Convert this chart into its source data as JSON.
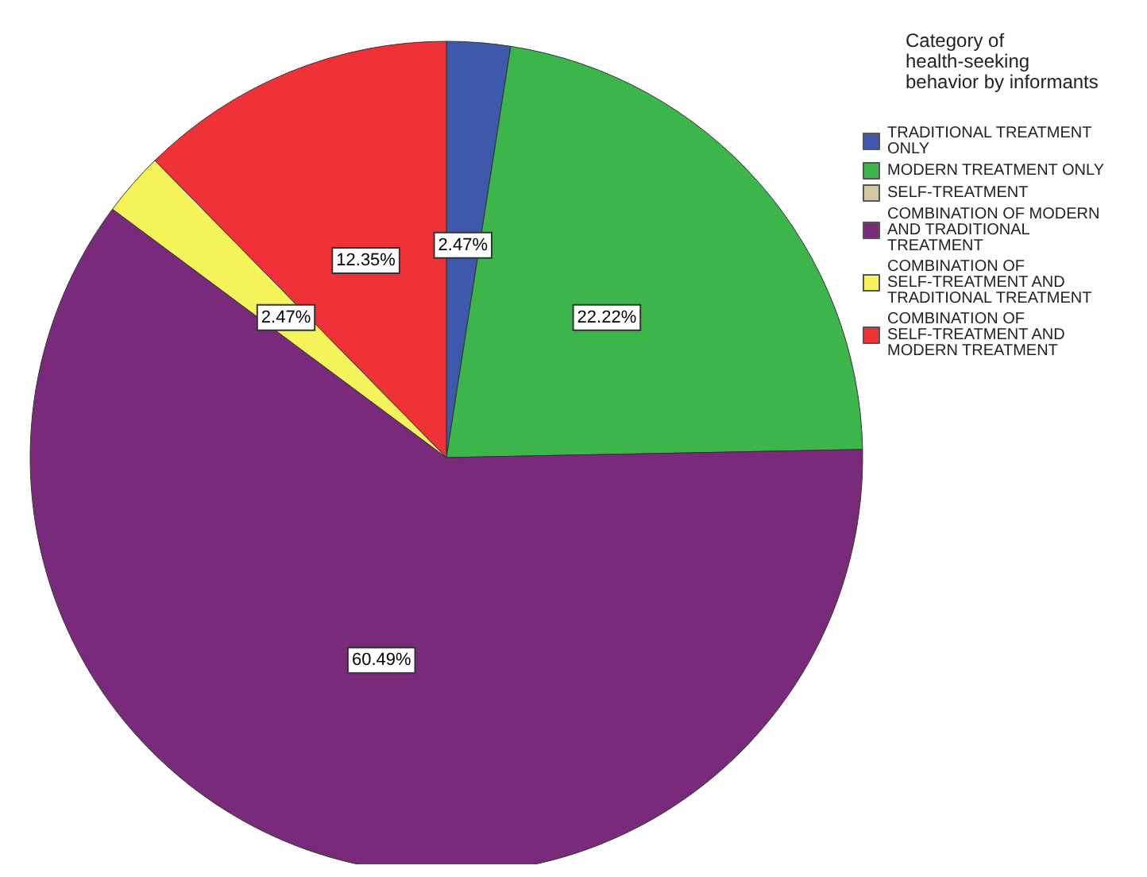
{
  "chart_data": {
    "type": "pie",
    "legend_title": "Category of health-seeking behavior by informants",
    "categories": [
      "TRADITIONAL TREATMENT ONLY",
      "MODERN TREATMENT ONLY",
      "SELF-TREATMENT",
      "COMBINATION OF MODERN AND TRADITIONAL TREATMENT",
      "COMBINATION OF SELF-TREATMENT AND TRADITIONAL TREATMENT",
      "COMBINATION OF SELF-TREATMENT AND MODERN TREATMENT"
    ],
    "values": [
      2.47,
      22.22,
      0,
      60.49,
      2.47,
      12.35
    ],
    "colors": [
      "#3e58ac",
      "#3cb64a",
      "#d2c7a0",
      "#7a2a7a",
      "#f5f35a",
      "#ee3237"
    ],
    "value_labels": [
      "2.47%",
      "22.22%",
      null,
      "60.49%",
      "2.47%",
      "12.35%"
    ],
    "legend": "top right"
  }
}
